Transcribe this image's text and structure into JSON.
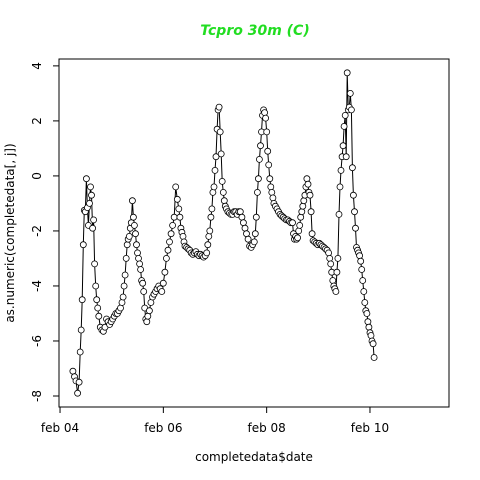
{
  "chart_data": {
    "type": "line",
    "title": "Tcpro 30m (C)",
    "xlabel": "completedata$date",
    "ylabel": "as.numeric(completedata[, j])",
    "x_tick_labels": [
      "feb 04",
      "feb 06",
      "feb 08",
      "feb 10"
    ],
    "x_tick_values": [
      4,
      6,
      8,
      10
    ],
    "y_ticks": [
      -8,
      -6,
      -4,
      -2,
      0,
      2,
      4
    ],
    "xlim": [
      3.98,
      11.53
    ],
    "ylim": [
      -8.4,
      4.25
    ],
    "grid": false,
    "line_color": "#000000",
    "point_style": "open-circle",
    "title_color": "#22dd22",
    "series": [
      {
        "x_unit": "day of february (fractional)",
        "points": [
          [
            4.25,
            -7.1
          ],
          [
            4.28,
            -7.3
          ],
          [
            4.31,
            -7.45
          ],
          [
            4.34,
            -7.9
          ],
          [
            4.37,
            -7.5
          ],
          [
            4.39,
            -6.4
          ],
          [
            4.41,
            -5.6
          ],
          [
            4.43,
            -4.5
          ],
          [
            4.45,
            -2.5
          ],
          [
            4.47,
            -1.25
          ],
          [
            4.49,
            -1.3
          ],
          [
            4.51,
            -0.1
          ],
          [
            4.53,
            -1.15
          ],
          [
            4.55,
            -1.8
          ],
          [
            4.57,
            -1.0
          ],
          [
            4.59,
            -0.4
          ],
          [
            4.61,
            -0.7
          ],
          [
            4.63,
            -1.9
          ],
          [
            4.65,
            -1.6
          ],
          [
            4.67,
            -3.2
          ],
          [
            4.69,
            -4.0
          ],
          [
            4.71,
            -4.5
          ],
          [
            4.73,
            -4.8
          ],
          [
            4.75,
            -5.1
          ],
          [
            4.78,
            -5.5
          ],
          [
            4.81,
            -5.6
          ],
          [
            4.84,
            -5.65
          ],
          [
            4.87,
            -5.5
          ],
          [
            4.9,
            -5.2
          ],
          [
            4.93,
            -5.3
          ],
          [
            4.96,
            -5.4
          ],
          [
            4.99,
            -5.3
          ],
          [
            5.02,
            -5.2
          ],
          [
            5.05,
            -5.1
          ],
          [
            5.08,
            -5.0
          ],
          [
            5.11,
            -5.0
          ],
          [
            5.14,
            -4.9
          ],
          [
            5.17,
            -4.8
          ],
          [
            5.2,
            -4.6
          ],
          [
            5.22,
            -4.4
          ],
          [
            5.24,
            -4.0
          ],
          [
            5.26,
            -3.6
          ],
          [
            5.28,
            -3.0
          ],
          [
            5.3,
            -2.5
          ],
          [
            5.32,
            -2.3
          ],
          [
            5.34,
            -2.2
          ],
          [
            5.36,
            -1.9
          ],
          [
            5.38,
            -1.7
          ],
          [
            5.4,
            -0.9
          ],
          [
            5.42,
            -1.5
          ],
          [
            5.44,
            -1.8
          ],
          [
            5.46,
            -2.1
          ],
          [
            5.48,
            -2.5
          ],
          [
            5.5,
            -2.8
          ],
          [
            5.52,
            -3.0
          ],
          [
            5.54,
            -3.2
          ],
          [
            5.56,
            -3.4
          ],
          [
            5.58,
            -3.8
          ],
          [
            5.6,
            -3.9
          ],
          [
            5.62,
            -4.2
          ],
          [
            5.64,
            -4.8
          ],
          [
            5.66,
            -5.2
          ],
          [
            5.68,
            -5.3
          ],
          [
            5.7,
            -5.1
          ],
          [
            5.73,
            -4.9
          ],
          [
            5.76,
            -4.6
          ],
          [
            5.79,
            -4.4
          ],
          [
            5.82,
            -4.3
          ],
          [
            5.85,
            -4.2
          ],
          [
            5.88,
            -4.1
          ],
          [
            5.91,
            -4.0
          ],
          [
            5.94,
            -4.1
          ],
          [
            5.97,
            -4.2
          ],
          [
            6.0,
            -3.9
          ],
          [
            6.03,
            -3.5
          ],
          [
            6.06,
            -3.0
          ],
          [
            6.09,
            -2.7
          ],
          [
            6.12,
            -2.4
          ],
          [
            6.15,
            -2.1
          ],
          [
            6.18,
            -1.8
          ],
          [
            6.21,
            -1.5
          ],
          [
            6.24,
            -0.4
          ],
          [
            6.27,
            -0.85
          ],
          [
            6.3,
            -1.2
          ],
          [
            6.32,
            -1.5
          ],
          [
            6.34,
            -1.9
          ],
          [
            6.36,
            -2.05
          ],
          [
            6.38,
            -2.2
          ],
          [
            6.4,
            -2.4
          ],
          [
            6.42,
            -2.55
          ],
          [
            6.45,
            -2.6
          ],
          [
            6.48,
            -2.65
          ],
          [
            6.51,
            -2.7
          ],
          [
            6.54,
            -2.8
          ],
          [
            6.57,
            -2.85
          ],
          [
            6.6,
            -2.8
          ],
          [
            6.63,
            -2.75
          ],
          [
            6.66,
            -2.85
          ],
          [
            6.69,
            -2.9
          ],
          [
            6.72,
            -2.85
          ],
          [
            6.75,
            -2.9
          ],
          [
            6.78,
            -2.95
          ],
          [
            6.81,
            -2.9
          ],
          [
            6.84,
            -2.8
          ],
          [
            6.86,
            -2.5
          ],
          [
            6.88,
            -2.2
          ],
          [
            6.9,
            -2.0
          ],
          [
            6.92,
            -1.5
          ],
          [
            6.94,
            -1.2
          ],
          [
            6.96,
            -0.6
          ],
          [
            6.98,
            -0.4
          ],
          [
            7.0,
            0.2
          ],
          [
            7.02,
            0.7
          ],
          [
            7.04,
            1.7
          ],
          [
            7.06,
            2.4
          ],
          [
            7.08,
            2.5
          ],
          [
            7.1,
            1.6
          ],
          [
            7.12,
            0.8
          ],
          [
            7.14,
            -0.2
          ],
          [
            7.16,
            -0.6
          ],
          [
            7.18,
            -0.9
          ],
          [
            7.2,
            -1.1
          ],
          [
            7.22,
            -1.2
          ],
          [
            7.25,
            -1.3
          ],
          [
            7.28,
            -1.35
          ],
          [
            7.31,
            -1.4
          ],
          [
            7.34,
            -1.4
          ],
          [
            7.37,
            -1.3
          ],
          [
            7.4,
            -1.3
          ],
          [
            7.43,
            -1.4
          ],
          [
            7.46,
            -1.3
          ],
          [
            7.49,
            -1.3
          ],
          [
            7.52,
            -1.5
          ],
          [
            7.55,
            -1.7
          ],
          [
            7.58,
            -1.9
          ],
          [
            7.61,
            -2.1
          ],
          [
            7.64,
            -2.3
          ],
          [
            7.67,
            -2.55
          ],
          [
            7.7,
            -2.6
          ],
          [
            7.73,
            -2.5
          ],
          [
            7.76,
            -2.4
          ],
          [
            7.78,
            -2.1
          ],
          [
            7.8,
            -1.5
          ],
          [
            7.82,
            -0.6
          ],
          [
            7.84,
            -0.1
          ],
          [
            7.86,
            0.6
          ],
          [
            7.88,
            1.1
          ],
          [
            7.9,
            1.6
          ],
          [
            7.92,
            2.2
          ],
          [
            7.94,
            2.4
          ],
          [
            7.96,
            2.3
          ],
          [
            7.98,
            2.1
          ],
          [
            8.0,
            1.6
          ],
          [
            8.02,
            0.9
          ],
          [
            8.04,
            0.4
          ],
          [
            8.06,
            -0.1
          ],
          [
            8.08,
            -0.4
          ],
          [
            8.1,
            -0.6
          ],
          [
            8.12,
            -0.8
          ],
          [
            8.14,
            -1.0
          ],
          [
            8.17,
            -1.1
          ],
          [
            8.2,
            -1.2
          ],
          [
            8.23,
            -1.3
          ],
          [
            8.26,
            -1.4
          ],
          [
            8.29,
            -1.45
          ],
          [
            8.32,
            -1.5
          ],
          [
            8.35,
            -1.55
          ],
          [
            8.38,
            -1.6
          ],
          [
            8.41,
            -1.6
          ],
          [
            8.44,
            -1.65
          ],
          [
            8.47,
            -1.7
          ],
          [
            8.5,
            -1.7
          ],
          [
            8.52,
            -2.1
          ],
          [
            8.54,
            -2.3
          ],
          [
            8.56,
            -2.2
          ],
          [
            8.58,
            -2.3
          ],
          [
            8.6,
            -2.25
          ],
          [
            8.62,
            -2.0
          ],
          [
            8.64,
            -1.8
          ],
          [
            8.66,
            -1.5
          ],
          [
            8.68,
            -1.3
          ],
          [
            8.7,
            -1.1
          ],
          [
            8.72,
            -0.9
          ],
          [
            8.74,
            -0.7
          ],
          [
            8.76,
            -0.4
          ],
          [
            8.78,
            -0.1
          ],
          [
            8.8,
            -0.3
          ],
          [
            8.82,
            -0.6
          ],
          [
            8.84,
            -0.7
          ],
          [
            8.86,
            -1.3
          ],
          [
            8.88,
            -2.1
          ],
          [
            8.9,
            -2.35
          ],
          [
            8.93,
            -2.4
          ],
          [
            8.96,
            -2.45
          ],
          [
            8.99,
            -2.5
          ],
          [
            9.02,
            -2.45
          ],
          [
            9.05,
            -2.5
          ],
          [
            9.08,
            -2.55
          ],
          [
            9.11,
            -2.6
          ],
          [
            9.14,
            -2.65
          ],
          [
            9.17,
            -2.7
          ],
          [
            9.2,
            -2.8
          ],
          [
            9.22,
            -3.0
          ],
          [
            9.24,
            -3.2
          ],
          [
            9.26,
            -3.5
          ],
          [
            9.28,
            -3.8
          ],
          [
            9.3,
            -4.0
          ],
          [
            9.32,
            -4.1
          ],
          [
            9.34,
            -4.2
          ],
          [
            9.36,
            -3.5
          ],
          [
            9.38,
            -3.0
          ],
          [
            9.4,
            -1.4
          ],
          [
            9.42,
            -0.4
          ],
          [
            9.44,
            0.2
          ],
          [
            9.46,
            0.7
          ],
          [
            9.48,
            1.1
          ],
          [
            9.5,
            1.8
          ],
          [
            9.52,
            2.2
          ],
          [
            9.54,
            0.7
          ],
          [
            9.56,
            3.75
          ],
          [
            9.58,
            2.4
          ],
          [
            9.6,
            2.5
          ],
          [
            9.62,
            3.0
          ],
          [
            9.64,
            2.4
          ],
          [
            9.66,
            0.3
          ],
          [
            9.68,
            -0.7
          ],
          [
            9.7,
            -1.3
          ],
          [
            9.72,
            -1.9
          ],
          [
            9.74,
            -2.6
          ],
          [
            9.76,
            -2.7
          ],
          [
            9.78,
            -2.8
          ],
          [
            9.8,
            -2.9
          ],
          [
            9.82,
            -3.1
          ],
          [
            9.84,
            -3.4
          ],
          [
            9.86,
            -3.8
          ],
          [
            9.88,
            -4.2
          ],
          [
            9.9,
            -4.6
          ],
          [
            9.92,
            -4.9
          ],
          [
            9.94,
            -5.0
          ],
          [
            9.96,
            -5.3
          ],
          [
            9.98,
            -5.5
          ],
          [
            10.0,
            -5.7
          ],
          [
            10.02,
            -5.8
          ],
          [
            10.04,
            -6.0
          ],
          [
            10.06,
            -6.1
          ],
          [
            10.08,
            -6.6
          ]
        ]
      }
    ]
  }
}
